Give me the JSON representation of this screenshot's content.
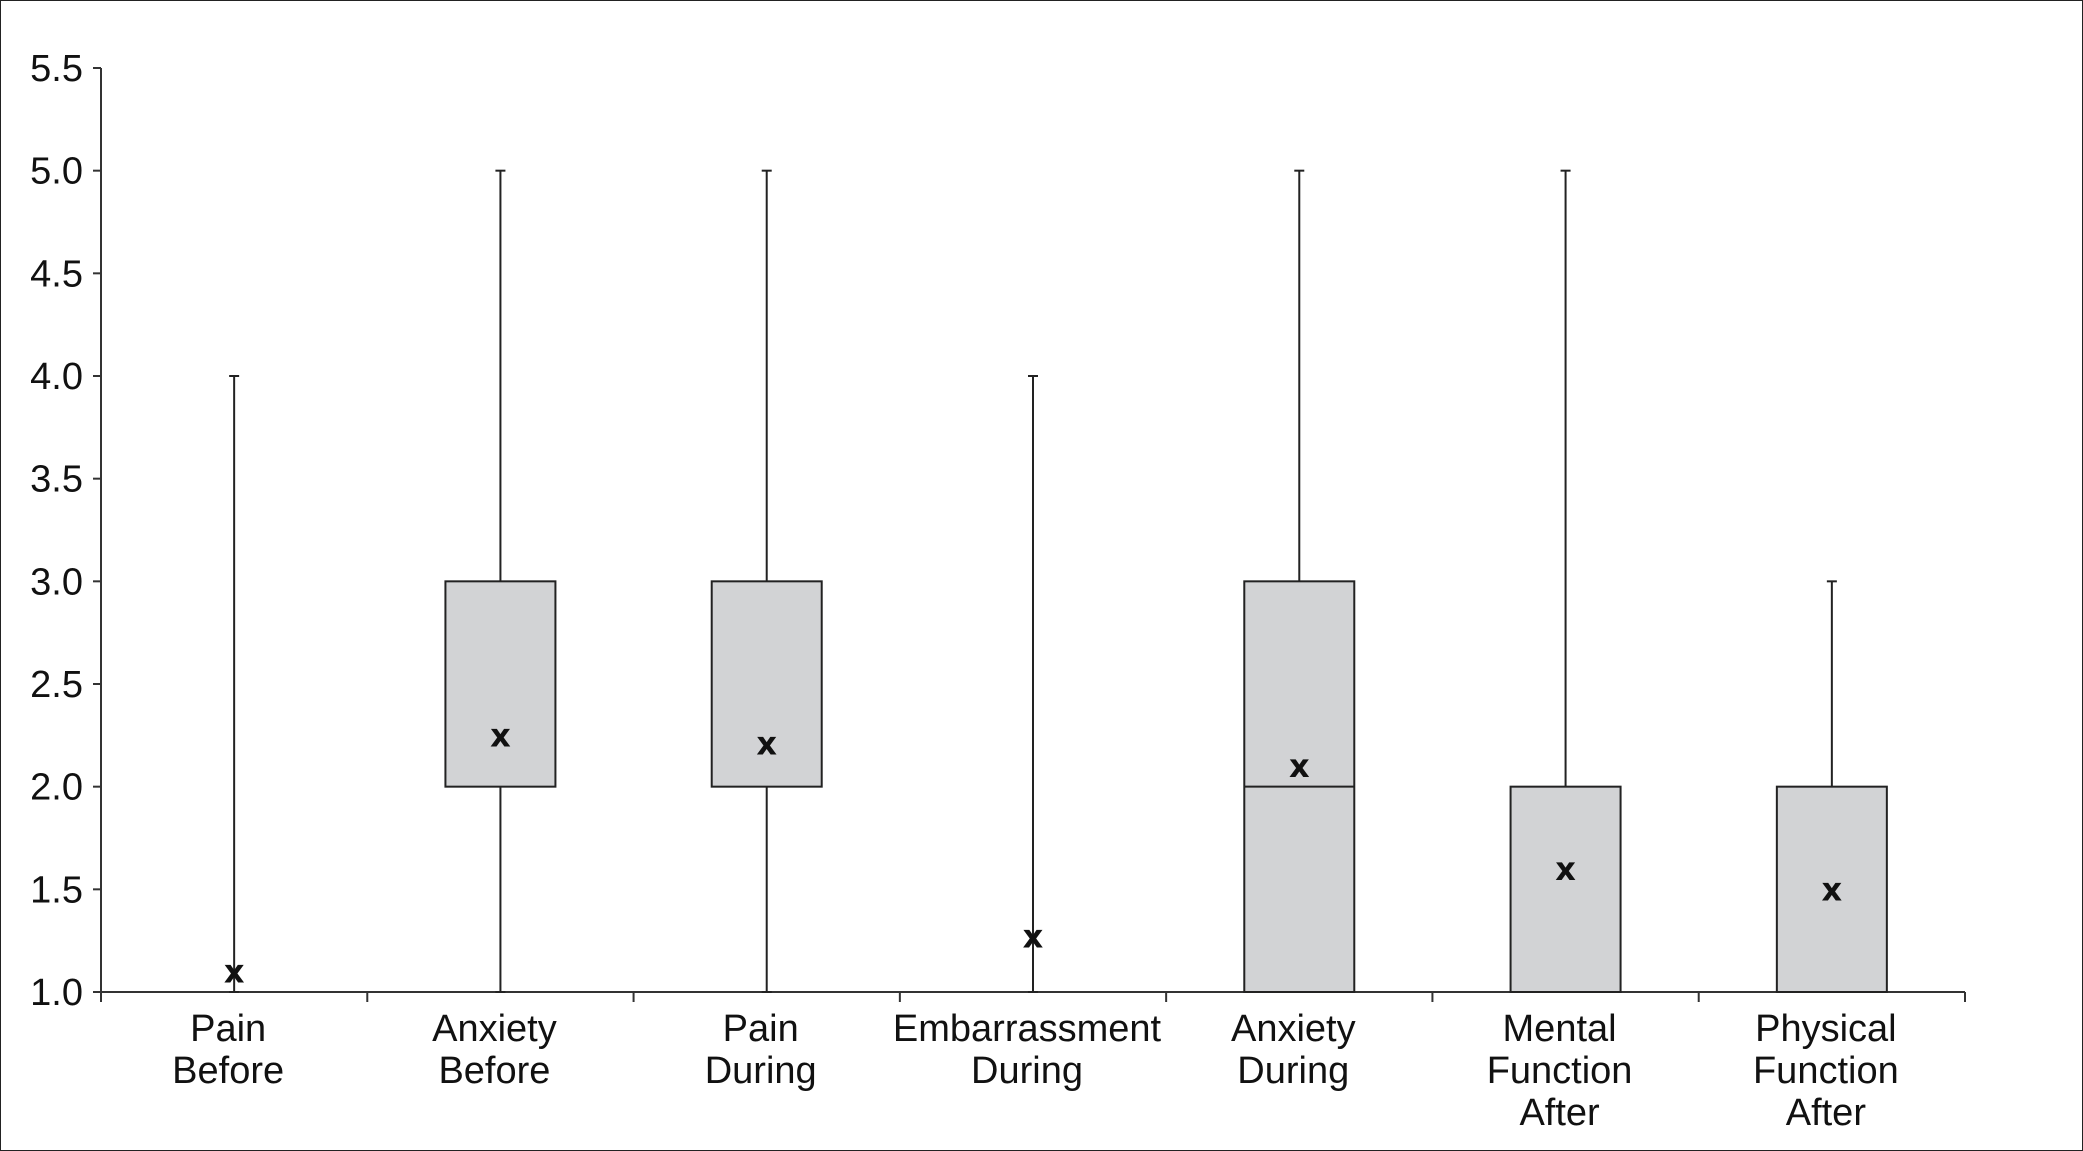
{
  "chart_data": {
    "type": "boxplot",
    "title": "",
    "xlabel": "",
    "ylabel": "",
    "ylim": [
      1.0,
      5.5
    ],
    "yticks": [
      "5.5",
      "5.0",
      "4.5",
      "4.0",
      "3.5",
      "3.0",
      "2.5",
      "2.0",
      "1.5",
      "1.0"
    ],
    "ytick_values": [
      5.5,
      5.0,
      4.5,
      4.0,
      3.5,
      3.0,
      2.5,
      2.0,
      1.5,
      1.0
    ],
    "grid": false,
    "mean_marker": "x",
    "categories": [
      {
        "lines": [
          "Pain",
          "Before"
        ],
        "min": 1.0,
        "q1": 1.0,
        "median": 1.0,
        "q3": 1.0,
        "max": 4.0,
        "mean": 1.1
      },
      {
        "lines": [
          "Anxiety",
          "Before"
        ],
        "min": 1.0,
        "q1": 2.0,
        "median": 2.0,
        "q3": 3.0,
        "max": 5.0,
        "mean": 2.25
      },
      {
        "lines": [
          "Pain",
          "During"
        ],
        "min": 1.0,
        "q1": 2.0,
        "median": 2.0,
        "q3": 3.0,
        "max": 5.0,
        "mean": 2.21
      },
      {
        "lines": [
          "Embarrassment",
          "During"
        ],
        "min": 1.0,
        "q1": 1.0,
        "median": 1.0,
        "q3": 1.0,
        "max": 4.0,
        "mean": 1.27
      },
      {
        "lines": [
          "Anxiety",
          "During"
        ],
        "min": 1.0,
        "q1": 1.0,
        "median": 2.0,
        "q3": 3.0,
        "max": 5.0,
        "mean": 2.1
      },
      {
        "lines": [
          "Mental",
          "Function",
          "After"
        ],
        "min": 1.0,
        "q1": 1.0,
        "median": 1.0,
        "q3": 2.0,
        "max": 5.0,
        "mean": 1.6
      },
      {
        "lines": [
          "Physical",
          "Function",
          "After"
        ],
        "min": 1.0,
        "q1": 1.0,
        "median": 1.0,
        "q3": 2.0,
        "max": 3.0,
        "mean": 1.5
      }
    ],
    "colors": {
      "box_fill": "#d2d3d5",
      "line": "#222222"
    }
  }
}
